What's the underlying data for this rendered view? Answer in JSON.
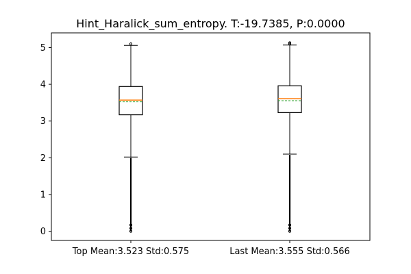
{
  "chart_data": {
    "type": "boxplot",
    "title": "Hint_Haralick_sum_entropy. T:-19.7385, P:0.0000",
    "xlabel": "",
    "ylabel": "",
    "ylim": [
      -0.25,
      5.4
    ],
    "yticks": [
      0,
      1,
      2,
      3,
      4,
      5
    ],
    "grid": false,
    "categories": [
      "Top Mean:3.523 Std:0.575",
      "Last Mean:3.555 Std:0.566"
    ],
    "boxes": [
      {
        "name": "Top",
        "whisker_low": 2.02,
        "q1": 3.17,
        "median": 3.57,
        "mean": 3.523,
        "q3": 3.94,
        "whisker_high": 5.06,
        "outliers_low_range": [
          0.0,
          2.0
        ],
        "outliers_high": [
          5.1
        ]
      },
      {
        "name": "Last",
        "whisker_low": 2.1,
        "q1": 3.23,
        "median": 3.61,
        "mean": 3.555,
        "q3": 3.96,
        "whisker_high": 5.07,
        "outliers_low_range": [
          0.0,
          2.08
        ],
        "outliers_high": [
          5.1,
          5.13
        ]
      }
    ],
    "colors": {
      "box": "#000000",
      "median": "#ff7f0e",
      "mean": "#2ca02c",
      "axis": "#000000"
    }
  }
}
